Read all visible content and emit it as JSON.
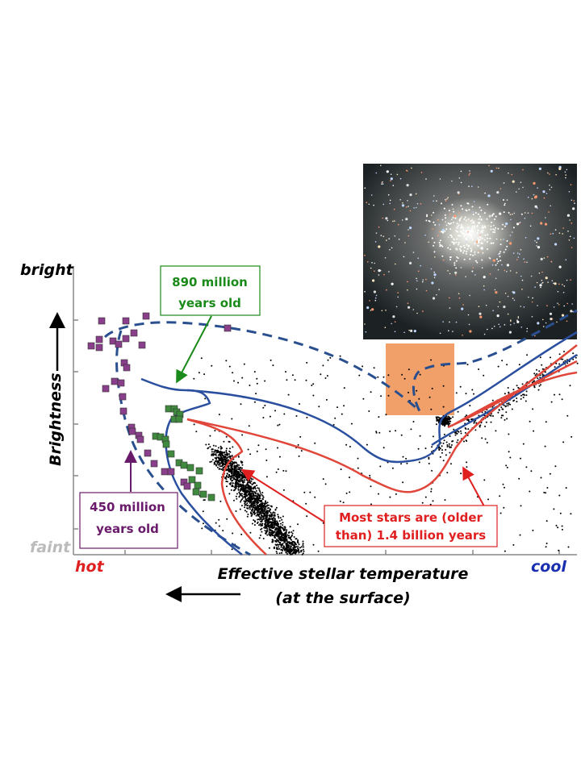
{
  "axes": {
    "y_top_label": "bright",
    "y_bottom_label": "faint",
    "y_title": "Brightness",
    "x_left_label": "hot",
    "x_right_label": "cool",
    "x_title_line1": "Effective stellar temperature",
    "x_title_line2": "(at the surface)"
  },
  "annotations": {
    "green": {
      "line1": "890 million",
      "line2": "years old",
      "color": "#1a8a1a"
    },
    "purple": {
      "line1": "450 million",
      "line2": "years old",
      "color": "#6a1a6a"
    },
    "red": {
      "line1": "Most stars are (older",
      "line2": "than) 1.4 billion years",
      "color": "#e02020"
    }
  },
  "colors": {
    "isochrone_450": "#2a4f8f",
    "isochrone_890": "#2a4f9f",
    "isochrone_1400": "#e0463a",
    "highlight_box": "#f0a068",
    "hot": "#e02020",
    "cool": "#1a2fb0",
    "faint": "#bbbbbb"
  },
  "inset_image": "star-cluster-photo"
}
